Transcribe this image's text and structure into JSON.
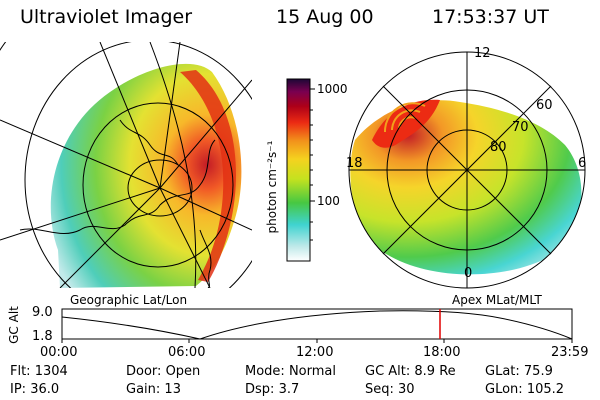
{
  "header": {
    "instrument": "Ultraviolet Imager",
    "date": "15 Aug 00",
    "time": "17:53:37 UT"
  },
  "colorbar": {
    "ticks": [
      "1000",
      "100"
    ],
    "unit_label": "photon cm⁻²s⁻¹"
  },
  "left_map": {
    "label": "Geographic Lat/Lon"
  },
  "right_map": {
    "label": "Apex MLat/MLT",
    "mlt_labels": {
      "top": "12",
      "left": "18",
      "right": "6",
      "bottom": "0"
    },
    "lat_labels": [
      "60",
      "70",
      "80"
    ]
  },
  "altitude_plot": {
    "ylabel": "GC Alt",
    "yticks": [
      "9.0",
      "1.8"
    ],
    "xticks": [
      "00:00",
      "06:00",
      "12:00",
      "18:00",
      "23:59"
    ],
    "marker_color": "#e00000"
  },
  "info": {
    "row1": [
      {
        "k": "Flt:",
        "v": "1304"
      },
      {
        "k": "Door:",
        "v": "Open"
      },
      {
        "k": "Mode:",
        "v": "Normal"
      },
      {
        "k": "GC Alt:",
        "v": "8.9 Re"
      },
      {
        "k": "GLat:",
        "v": "75.9"
      }
    ],
    "row2": [
      {
        "k": "IP:",
        "v": "36.0"
      },
      {
        "k": "Gain:",
        "v": "13"
      },
      {
        "k": "Dsp:",
        "v": "3.7"
      },
      {
        "k": "Seq:",
        "v": "30"
      },
      {
        "k": "GLon:",
        "v": "105.2"
      }
    ]
  },
  "colors": {
    "scale": [
      "#ffffff",
      "#bfe9e9",
      "#3fd3d0",
      "#47c842",
      "#c4e21f",
      "#f5d21f",
      "#f2921b",
      "#ec2b13",
      "#ad0018",
      "#7a0050",
      "#1d0736"
    ]
  }
}
